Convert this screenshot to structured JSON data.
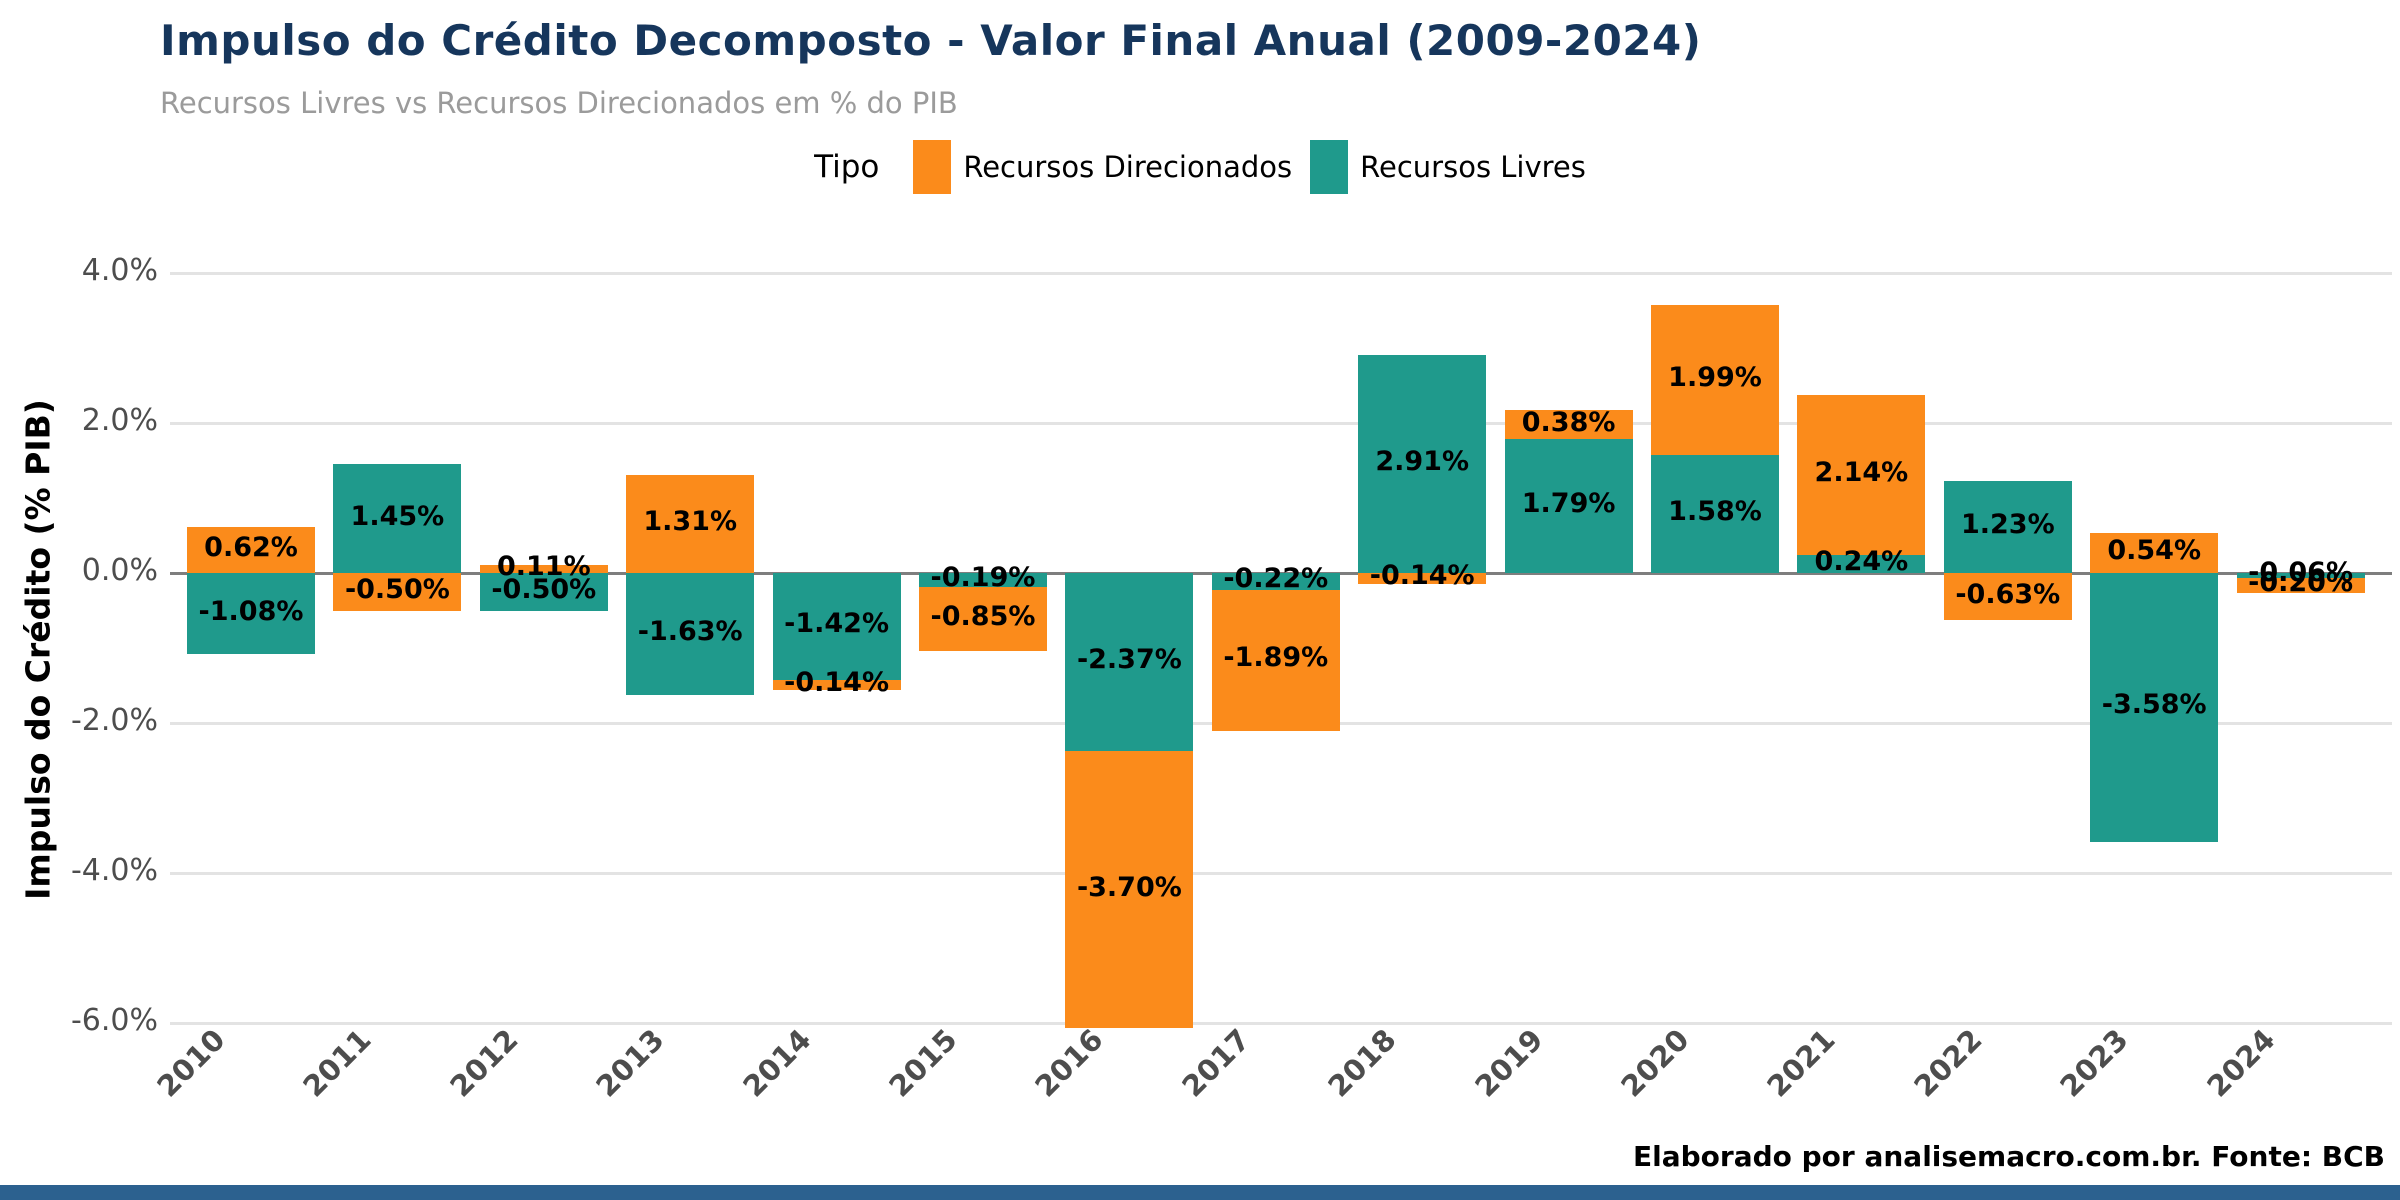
{
  "title": "Impulso do Crédito Decomposto - Valor Final Anual (2009-2024)",
  "subtitle": "Recursos Livres vs Recursos Direcionados em % do PIB",
  "legend": {
    "title": "Tipo",
    "items": [
      {
        "label": "Recursos Direcionados",
        "color": "#FB8B1B"
      },
      {
        "label": "Recursos Livres",
        "color": "#1F9A8C"
      }
    ]
  },
  "footer": "Elaborado por analisemacro.com.br. Fonte: BCB",
  "colors": {
    "title": "#16365C",
    "subtitle": "#9B9B9B",
    "axis_text": "#4D4D4D",
    "gridline": "#E3E3E3",
    "zero_line": "#7E7E7E",
    "bar_label": "#000000",
    "bottom_bar": "#2C618F",
    "background": "#FFFFFF"
  },
  "chart_data": {
    "type": "bar",
    "stacked": true,
    "title": "Impulso do Crédito Decomposto - Valor Final Anual (2009-2024)",
    "subtitle": "Recursos Livres vs Recursos Direcionados em % do PIB",
    "xlabel": "",
    "ylabel": "Impulso do Crédito (% PIB)",
    "categories": [
      "2010",
      "2011",
      "2012",
      "2013",
      "2014",
      "2015",
      "2016",
      "2017",
      "2018",
      "2019",
      "2020",
      "2021",
      "2022",
      "2023",
      "2024"
    ],
    "series": [
      {
        "name": "Recursos Livres",
        "color": "#1F9A8C",
        "stack": "inner",
        "values": [
          -1.08,
          1.45,
          -0.5,
          -1.63,
          -1.42,
          -0.19,
          -2.37,
          -0.22,
          2.91,
          1.79,
          1.58,
          0.24,
          1.23,
          -3.58,
          -0.06
        ]
      },
      {
        "name": "Recursos Direcionados",
        "color": "#FB8B1B",
        "stack": "outer",
        "values": [
          0.62,
          -0.5,
          0.11,
          1.31,
          -0.14,
          -0.85,
          -3.7,
          -1.89,
          -0.14,
          0.38,
          1.99,
          2.14,
          -0.63,
          0.54,
          -0.2
        ]
      }
    ],
    "bar_labels": {
      "Recursos Livres": [
        "-1.08%",
        "1.45%",
        "-0.50%",
        "-1.63%",
        "-1.42%",
        "-0.19%",
        "-2.37%",
        "-0.22%",
        "2.91%",
        "1.79%",
        "1.58%",
        "0.24%",
        "1.23%",
        "-3.58%",
        "-0.06%"
      ],
      "Recursos Direcionados": [
        "0.62%",
        "-0.50%",
        "0.11%",
        "1.31%",
        "-0.14%",
        "-0.85%",
        "-3.70%",
        "-1.89%",
        "-0.14%",
        "0.38%",
        "1.99%",
        "2.14%",
        "-0.63%",
        "0.54%",
        "-0.20%"
      ]
    },
    "yticks": [
      4,
      2,
      0,
      -2,
      -4,
      -6
    ],
    "ytick_labels": [
      "4.0%",
      "2.0%",
      "0.0%",
      "-2.0%",
      "-4.0%",
      "-6.0%"
    ],
    "ylim": [
      -6.4,
      4.6
    ],
    "grid": true,
    "legend_position": "top"
  }
}
